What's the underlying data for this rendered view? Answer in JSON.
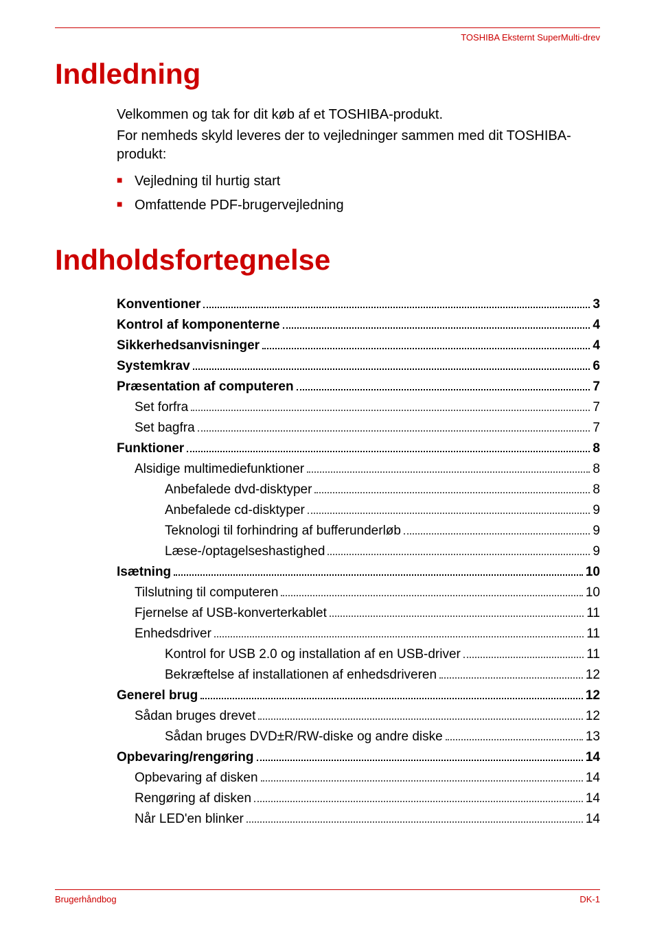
{
  "header": {
    "product": "TOSHIBA Eksternt SuperMulti-drev"
  },
  "intro": {
    "title": "Indledning",
    "welcome": "Velkommen og tak for dit køb af et TOSHIBA-produkt.",
    "convenience": "For nemheds skyld leveres der to vejledninger sammen med dit TOSHIBA-produkt:",
    "bullets": [
      "Vejledning til hurtig start",
      "Omfattende PDF-brugervejledning"
    ]
  },
  "toc": {
    "title": "Indholdsfortegnelse",
    "entries": [
      {
        "label": "Konventioner",
        "page": "3",
        "level": 0
      },
      {
        "label": "Kontrol af komponenterne",
        "page": "4",
        "level": 0
      },
      {
        "label": "Sikkerhedsanvisninger",
        "page": "4",
        "level": 0
      },
      {
        "label": "Systemkrav",
        "page": "6",
        "level": 0
      },
      {
        "label": "Præsentation af computeren",
        "page": "7",
        "level": 0
      },
      {
        "label": "Set forfra",
        "page": "7",
        "level": 1
      },
      {
        "label": "Set bagfra",
        "page": "7",
        "level": 1
      },
      {
        "label": "Funktioner",
        "page": "8",
        "level": 0
      },
      {
        "label": "Alsidige multimediefunktioner",
        "page": "8",
        "level": 1
      },
      {
        "label": "Anbefalede dvd-disktyper",
        "page": "8",
        "level": 2
      },
      {
        "label": "Anbefalede cd-disktyper",
        "page": "9",
        "level": 2
      },
      {
        "label": "Teknologi til forhindring af bufferunderløb",
        "page": "9",
        "level": 2
      },
      {
        "label": "Læse-/optagelseshastighed",
        "page": "9",
        "level": 2
      },
      {
        "label": "Isætning",
        "page": "10",
        "level": 0
      },
      {
        "label": "Tilslutning til computeren",
        "page": "10",
        "level": 1
      },
      {
        "label": "Fjernelse af USB-konverterkablet",
        "page": "11",
        "level": 1
      },
      {
        "label": "Enhedsdriver",
        "page": "11",
        "level": 1
      },
      {
        "label": "Kontrol for USB 2.0 og installation af en USB-driver",
        "page": "11",
        "level": 2
      },
      {
        "label": "Bekræftelse af installationen af enhedsdriveren",
        "page": "12",
        "level": 2
      },
      {
        "label": "Generel brug",
        "page": "12",
        "level": 0
      },
      {
        "label": "Sådan bruges drevet",
        "page": "12",
        "level": 1
      },
      {
        "label": "Sådan bruges DVD±R/RW-diske og andre diske",
        "page": "13",
        "level": 2
      },
      {
        "label": "Opbevaring/rengøring",
        "page": "14",
        "level": 0
      },
      {
        "label": "Opbevaring af disken",
        "page": "14",
        "level": 1
      },
      {
        "label": "Rengøring af disken",
        "page": "14",
        "level": 1
      },
      {
        "label": "Når LED'en blinker",
        "page": "14",
        "level": 1
      }
    ]
  },
  "footer": {
    "left": "Brugerhåndbog",
    "right": "DK-1"
  },
  "colors": {
    "accent": "#c00",
    "text": "#000",
    "background": "#ffffff"
  }
}
